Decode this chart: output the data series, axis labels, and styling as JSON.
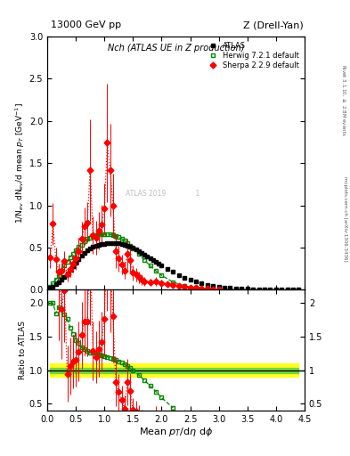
{
  "title_top": "13000 GeV pp",
  "title_top_right": "Z (Drell-Yan)",
  "plot_title": "Nch (ATLAS UE in Z production)",
  "xlabel": "Mean $p_T$/d$\\eta$ d$\\phi$",
  "ylabel_main": "1/N$_{ev}$ dN$_{ev}$/d mean $p_T$ [GeV$^{-1}$]",
  "ylabel_ratio": "Ratio to ATLAS",
  "right_label1": "Rivet 3.1.10, $\\geq$ 2.8M events",
  "right_label2": "mcplots.cern.ch [arXiv:1306.3436]",
  "xlim": [
    0,
    4.5
  ],
  "ylim_main": [
    0,
    3.0
  ],
  "ylim_ratio": [
    0.4,
    2.2
  ],
  "atlas_x": [
    0.05,
    0.1,
    0.15,
    0.2,
    0.25,
    0.3,
    0.35,
    0.4,
    0.45,
    0.5,
    0.55,
    0.6,
    0.65,
    0.7,
    0.75,
    0.8,
    0.85,
    0.9,
    0.95,
    1.0,
    1.05,
    1.1,
    1.15,
    1.2,
    1.25,
    1.3,
    1.35,
    1.4,
    1.45,
    1.5,
    1.55,
    1.6,
    1.65,
    1.7,
    1.75,
    1.8,
    1.85,
    1.9,
    1.95,
    2.0,
    2.1,
    2.2,
    2.3,
    2.4,
    2.5,
    2.6,
    2.7,
    2.8,
    2.9,
    3.0,
    3.1,
    3.2,
    3.3,
    3.4,
    3.5,
    3.6,
    3.7,
    3.8,
    3.9,
    4.0,
    4.1,
    4.2,
    4.3,
    4.4
  ],
  "atlas_y": [
    0.02,
    0.04,
    0.065,
    0.09,
    0.12,
    0.155,
    0.19,
    0.235,
    0.275,
    0.32,
    0.36,
    0.4,
    0.435,
    0.465,
    0.49,
    0.505,
    0.52,
    0.53,
    0.54,
    0.545,
    0.55,
    0.555,
    0.555,
    0.555,
    0.55,
    0.545,
    0.535,
    0.525,
    0.51,
    0.495,
    0.475,
    0.455,
    0.435,
    0.415,
    0.393,
    0.372,
    0.35,
    0.328,
    0.308,
    0.288,
    0.248,
    0.21,
    0.175,
    0.145,
    0.118,
    0.095,
    0.076,
    0.06,
    0.047,
    0.037,
    0.029,
    0.022,
    0.017,
    0.013,
    0.01,
    0.008,
    0.006,
    0.005,
    0.004,
    0.003,
    0.0025,
    0.002,
    0.0015,
    0.001
  ],
  "herwig_x": [
    0.05,
    0.1,
    0.15,
    0.2,
    0.25,
    0.3,
    0.35,
    0.4,
    0.45,
    0.5,
    0.55,
    0.6,
    0.65,
    0.7,
    0.75,
    0.8,
    0.85,
    0.9,
    0.95,
    1.0,
    1.05,
    1.1,
    1.15,
    1.2,
    1.25,
    1.3,
    1.35,
    1.4,
    1.45,
    1.5,
    1.6,
    1.7,
    1.8,
    1.9,
    2.0,
    2.2,
    2.4,
    2.6,
    2.8,
    3.0,
    3.2,
    3.4,
    3.6,
    3.8,
    4.0,
    4.2,
    4.4
  ],
  "herwig_y": [
    0.04,
    0.08,
    0.12,
    0.175,
    0.23,
    0.285,
    0.335,
    0.385,
    0.425,
    0.465,
    0.505,
    0.535,
    0.57,
    0.6,
    0.62,
    0.635,
    0.645,
    0.655,
    0.658,
    0.66,
    0.66,
    0.655,
    0.648,
    0.638,
    0.623,
    0.605,
    0.583,
    0.556,
    0.526,
    0.493,
    0.423,
    0.352,
    0.285,
    0.224,
    0.17,
    0.092,
    0.045,
    0.02,
    0.008,
    0.003,
    0.001,
    0.0004,
    0.00015,
    5e-05,
    2e-05,
    7e-06,
    2e-06
  ],
  "sherpa_x": [
    0.05,
    0.1,
    0.15,
    0.2,
    0.25,
    0.3,
    0.35,
    0.4,
    0.45,
    0.5,
    0.55,
    0.6,
    0.65,
    0.7,
    0.75,
    0.8,
    0.85,
    0.9,
    0.95,
    1.0,
    1.05,
    1.1,
    1.15,
    1.2,
    1.25,
    1.3,
    1.35,
    1.4,
    1.45,
    1.5,
    1.55,
    1.6,
    1.65,
    1.7,
    1.8,
    1.9,
    2.0,
    2.1,
    2.2,
    2.3,
    2.4,
    2.5,
    2.6,
    2.7,
    2.8,
    2.9,
    3.0
  ],
  "sherpa_y": [
    0.38,
    0.78,
    0.36,
    0.22,
    0.23,
    0.34,
    0.18,
    0.25,
    0.31,
    0.37,
    0.46,
    0.61,
    0.75,
    0.8,
    1.42,
    0.65,
    0.62,
    0.7,
    0.77,
    0.96,
    1.74,
    1.42,
    1.0,
    0.46,
    0.37,
    0.3,
    0.23,
    0.43,
    0.35,
    0.2,
    0.18,
    0.15,
    0.12,
    0.1,
    0.09,
    0.1,
    0.08,
    0.07,
    0.06,
    0.05,
    0.04,
    0.03,
    0.02,
    0.015,
    0.01,
    0.008,
    0.005
  ],
  "sherpa_err": [
    0.12,
    0.25,
    0.14,
    0.09,
    0.09,
    0.12,
    0.08,
    0.1,
    0.11,
    0.13,
    0.16,
    0.2,
    0.22,
    0.24,
    0.6,
    0.22,
    0.2,
    0.22,
    0.24,
    0.3,
    0.7,
    0.55,
    0.38,
    0.2,
    0.15,
    0.12,
    0.1,
    0.18,
    0.14,
    0.09,
    0.08,
    0.07,
    0.06,
    0.05,
    0.04,
    0.05,
    0.04,
    0.03,
    0.03,
    0.02,
    0.02,
    0.015,
    0.01,
    0.008,
    0.005,
    0.004,
    0.003
  ],
  "atlas_color": "#000000",
  "herwig_color": "#008800",
  "sherpa_color": "#ff0000",
  "bg_color": "#ffffff",
  "green_band_half": 0.04,
  "yellow_band_half": 0.1
}
